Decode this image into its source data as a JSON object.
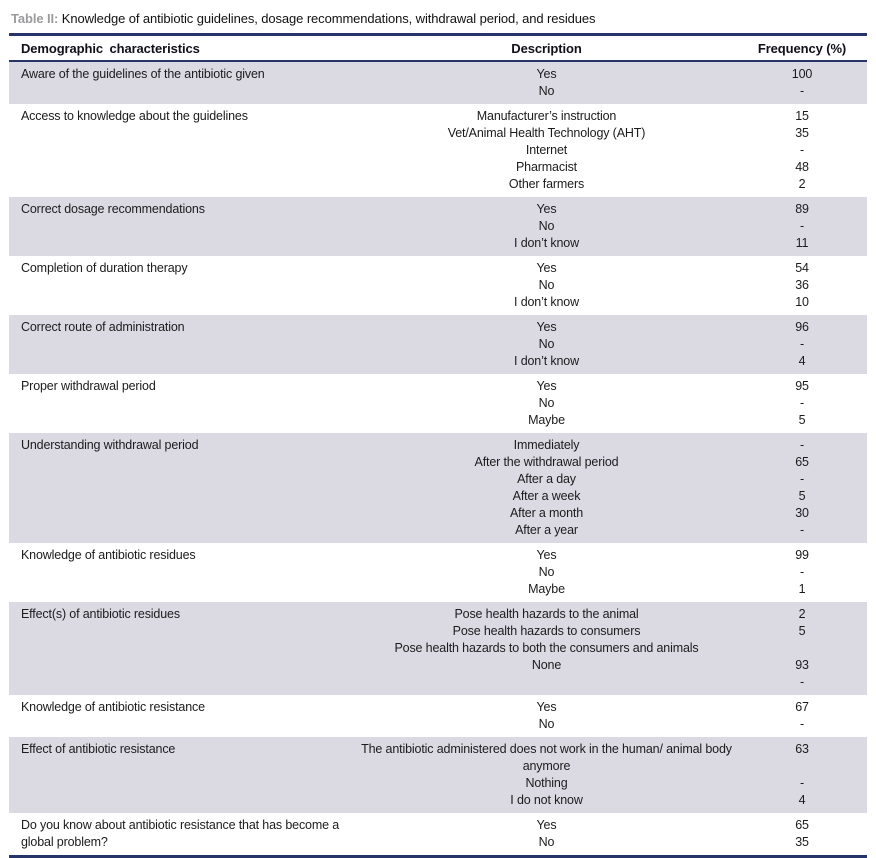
{
  "title": {
    "label": "Table II:",
    "text": " Knowledge of antibiotic guidelines, dosage recommendations, withdrawal period, and residues"
  },
  "colors": {
    "accent_navy": "#273469",
    "row_shade": "#dbdae3",
    "title_label_gray": "#9b9b9e"
  },
  "table": {
    "columns": [
      "Demographic characteristics",
      "Description",
      "Frequency (%)"
    ],
    "rows": [
      {
        "characteristic": "Aware of the guidelines of the antibiotic given",
        "shaded": true,
        "items": [
          {
            "description": "Yes",
            "frequency": "100"
          },
          {
            "description": "No",
            "frequency": "-"
          }
        ]
      },
      {
        "characteristic": "Access to knowledge about the guidelines",
        "shaded": false,
        "items": [
          {
            "description": "Manufacturer’s instruction",
            "frequency": "15"
          },
          {
            "description": "Vet/Animal Health Technology (AHT)",
            "frequency": "35"
          },
          {
            "description": "Internet",
            "frequency": "-"
          },
          {
            "description": "Pharmacist",
            "frequency": "48"
          },
          {
            "description": "Other farmers",
            "frequency": "2"
          }
        ]
      },
      {
        "characteristic": "Correct dosage recommendations",
        "shaded": true,
        "items": [
          {
            "description": "Yes",
            "frequency": "89"
          },
          {
            "description": "No",
            "frequency": "-"
          },
          {
            "description": "I don’t know",
            "frequency": "11"
          }
        ]
      },
      {
        "characteristic": "Completion of duration therapy",
        "shaded": false,
        "items": [
          {
            "description": "Yes",
            "frequency": "54"
          },
          {
            "description": "No",
            "frequency": "36"
          },
          {
            "description": "I don’t know",
            "frequency": "10"
          }
        ]
      },
      {
        "characteristic": "Correct route of administration",
        "shaded": true,
        "items": [
          {
            "description": "Yes",
            "frequency": "96"
          },
          {
            "description": "No",
            "frequency": "-"
          },
          {
            "description": "I don’t know",
            "frequency": "4"
          }
        ]
      },
      {
        "characteristic": "Proper withdrawal period",
        "shaded": false,
        "items": [
          {
            "description": "Yes",
            "frequency": "95"
          },
          {
            "description": "No",
            "frequency": "-"
          },
          {
            "description": "Maybe",
            "frequency": "5"
          }
        ]
      },
      {
        "characteristic": "Understanding withdrawal period",
        "shaded": true,
        "items": [
          {
            "description": "Immediately",
            "frequency": "-"
          },
          {
            "description": "After the withdrawal period",
            "frequency": "65"
          },
          {
            "description": "After a day",
            "frequency": "-"
          },
          {
            "description": "After a week",
            "frequency": "5"
          },
          {
            "description": "After a month",
            "frequency": "30"
          },
          {
            "description": "After a year",
            "frequency": "-"
          }
        ]
      },
      {
        "characteristic": "Knowledge of antibiotic residues",
        "shaded": false,
        "items": [
          {
            "description": "Yes",
            "frequency": "99"
          },
          {
            "description": "No",
            "frequency": "-"
          },
          {
            "description": "Maybe",
            "frequency": "1"
          }
        ]
      },
      {
        "characteristic": "Effect(s) of antibiotic residues",
        "shaded": true,
        "items": [
          {
            "description": "Pose health hazards to the animal",
            "frequency": "2"
          },
          {
            "description": "Pose health hazards to consumers",
            "frequency": "5"
          },
          {
            "description": "Pose health hazards to both the consumers and animals",
            "frequency": ""
          },
          {
            "description": "None",
            "frequency": "93"
          },
          {
            "description": "",
            "frequency": "-"
          }
        ]
      },
      {
        "characteristic": "Knowledge of antibiotic resistance",
        "shaded": false,
        "items": [
          {
            "description": "Yes",
            "frequency": "67"
          },
          {
            "description": "No",
            "frequency": "-"
          }
        ]
      },
      {
        "characteristic": "Effect of antibiotic resistance",
        "shaded": true,
        "items": [
          {
            "description": "The antibiotic administered does not work in the human/ animal body anymore",
            "frequency": "63"
          },
          {
            "description": "Nothing",
            "frequency": "-"
          },
          {
            "description": "I do not know",
            "frequency": "4"
          }
        ]
      },
      {
        "characteristic": "Do you know about antibiotic resistance that has become a global problem?",
        "shaded": false,
        "items": [
          {
            "description": "Yes",
            "frequency": "65"
          },
          {
            "description": "No",
            "frequency": "35"
          }
        ]
      }
    ]
  }
}
